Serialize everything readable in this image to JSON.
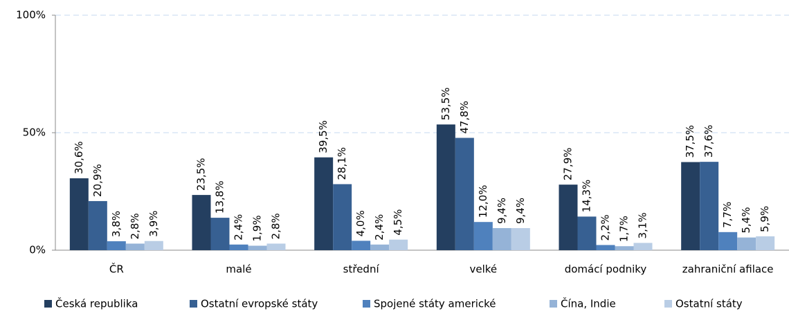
{
  "chart_data": {
    "type": "bar",
    "categories": [
      "ČR",
      "malé",
      "střední",
      "velké",
      "domácí podniky",
      "zahraniční afilace"
    ],
    "series": [
      {
        "name": "Česká republika",
        "color": "#243f60",
        "values": [
          30.6,
          23.5,
          39.5,
          53.5,
          27.9,
          37.5
        ],
        "value_labels": [
          "30,6%",
          "23,5%",
          "39,5%",
          "53,5%",
          "27,9%",
          "37,5%"
        ]
      },
      {
        "name": "Ostatní evropské státy",
        "color": "#376092",
        "values": [
          20.9,
          13.8,
          28.1,
          47.8,
          14.3,
          37.6
        ],
        "value_labels": [
          "20,9%",
          "13,8%",
          "28,1%",
          "47,8%",
          "14,3%",
          "37,6%"
        ]
      },
      {
        "name": "Spojené státy americké",
        "color": "#4f81bd",
        "values": [
          3.8,
          2.4,
          4.0,
          12.0,
          2.2,
          7.7
        ],
        "value_labels": [
          "3,8%",
          "2,4%",
          "4,0%",
          "12,0%",
          "2,2%",
          "7,7%"
        ]
      },
      {
        "name": "Čína, Indie",
        "color": "#95b3d7",
        "values": [
          2.8,
          1.9,
          2.4,
          9.4,
          1.7,
          5.4
        ],
        "value_labels": [
          "2,8%",
          "1,9%",
          "2,4%",
          "9,4%",
          "1,7%",
          "5,4%"
        ]
      },
      {
        "name": "Ostatní státy",
        "color": "#b9cde5",
        "values": [
          3.9,
          2.8,
          4.5,
          9.4,
          3.1,
          5.9
        ],
        "value_labels": [
          "3,9%",
          "2,8%",
          "4,5%",
          "9,4%",
          "3,1%",
          "5,9%"
        ]
      }
    ],
    "ylim": [
      0,
      100
    ],
    "yticks": [
      {
        "value": 0,
        "label": "0%"
      },
      {
        "value": 50,
        "label": "50%"
      },
      {
        "value": 100,
        "label": "100%"
      }
    ],
    "grid": true,
    "legend": "bottom"
  }
}
